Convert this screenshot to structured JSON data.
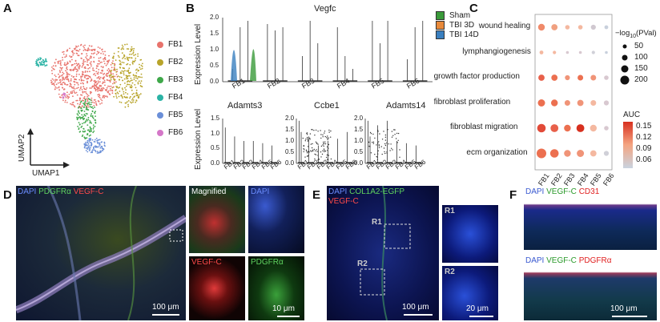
{
  "panels": {
    "A": {
      "label": "A",
      "axis_x": "UMAP1",
      "axis_y": "UMAP2",
      "legend": [
        {
          "name": "FB1",
          "color": "#e8736c"
        },
        {
          "name": "FB2",
          "color": "#b8a42a"
        },
        {
          "name": "FB3",
          "color": "#3fa84a"
        },
        {
          "name": "FB4",
          "color": "#2bb3a5"
        },
        {
          "name": "FB5",
          "color": "#6a8fd8"
        },
        {
          "name": "FB6",
          "color": "#d477c8"
        }
      ]
    },
    "B": {
      "label": "B",
      "gene_top": "Vegfc",
      "gene_bl": "Adamts3",
      "gene_bm": "Ccbe1",
      "gene_br": "Adamts14",
      "ylabel": "Expression Level",
      "ticks_top": [
        "2.0",
        "1.5",
        "1.0",
        "0.5",
        "0.0"
      ],
      "ticks_bot": [
        "1.5",
        "1.0",
        "0.5",
        "0.0"
      ],
      "ticks_bot2": [
        "2.0",
        "1.5",
        "1.0",
        "0.5",
        "0.0"
      ],
      "categories": [
        "FB1",
        "FB2",
        "FB3",
        "FB4",
        "FB5",
        "FB6"
      ],
      "legend": [
        {
          "name": "Sham",
          "color": "#3a9a3a"
        },
        {
          "name": "TBI 3D",
          "color": "#e8893a"
        },
        {
          "name": "TBI 14D",
          "color": "#3a7fbf"
        }
      ]
    },
    "C": {
      "label": "C",
      "rows": [
        "wound healing",
        "lymphangiogenesis",
        "growth factor production",
        "fibroblast proliferation",
        "fibroblast migration",
        "ecm organization"
      ],
      "cols": [
        "FB1",
        "FB2",
        "FB3",
        "FB4",
        "FB5",
        "FB6"
      ],
      "size_title": "−log",
      "size_sub": "10",
      "size_tail": "(PVal)",
      "size_levels": [
        "50",
        "100",
        "150",
        "200"
      ],
      "color_title": "AUC",
      "color_levels": [
        "0.15",
        "0.12",
        "0.09",
        "0.06"
      ]
    },
    "D": {
      "label": "D",
      "stain": {
        "dapi": "DAPI",
        "pdgfra": "PDGFRα",
        "vegfc": "VEGF-C"
      },
      "magnified": "Magnified",
      "dapi_inset": "DAPI",
      "vegfc_inset": "VEGF-C",
      "pdgfra_inset": "PDGFRα",
      "scale_main": "100 μm",
      "scale_inset": "10 μm"
    },
    "E": {
      "label": "E",
      "stain_a": "DAPI",
      "stain_b": "COL1A2-EGFP",
      "stain_c": "VEGF-C",
      "roi1": "R1",
      "roi2": "R2",
      "inset1": "R1",
      "inset2": "R2",
      "scale_main": "100 μm",
      "scale_inset": "20 μm"
    },
    "F": {
      "label": "F",
      "top_a": "DAPI",
      "top_b": "VEGF-C",
      "top_c": "CD31",
      "bot_a": "DAPI",
      "bot_b": "VEGF-C",
      "bot_c": "PDGFRα",
      "scale": "100 μm"
    }
  }
}
